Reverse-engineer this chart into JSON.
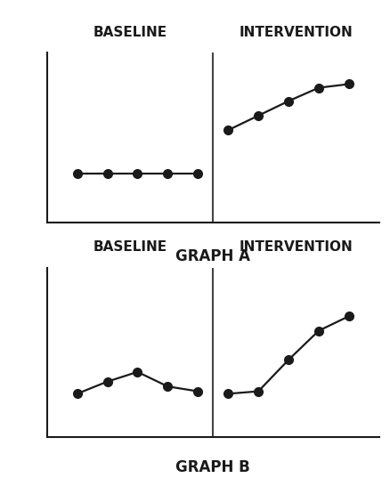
{
  "graph_A": {
    "title": "GRAPH A",
    "baseline_label": "BASELINE",
    "intervention_label": "INTERVENTION",
    "baseline_x": [
      1,
      2,
      3,
      4,
      5
    ],
    "baseline_y": [
      2.0,
      2.0,
      2.0,
      2.0,
      2.0
    ],
    "intervention_x": [
      6,
      7,
      8,
      9,
      10
    ],
    "intervention_y": [
      3.8,
      4.4,
      5.0,
      5.55,
      5.7
    ],
    "divider_x": 5.5,
    "ylim": [
      0,
      7
    ],
    "xlim": [
      0,
      11
    ]
  },
  "graph_B": {
    "title": "GRAPH B",
    "baseline_label": "BASELINE",
    "intervention_label": "INTERVENTION",
    "baseline_x": [
      1,
      2,
      3,
      4,
      5
    ],
    "baseline_y": [
      1.8,
      2.3,
      2.7,
      2.1,
      1.9
    ],
    "intervention_x": [
      6,
      7,
      8,
      9,
      10
    ],
    "intervention_y": [
      1.8,
      1.9,
      3.2,
      4.4,
      5.0
    ],
    "divider_x": 5.5,
    "ylim": [
      0,
      7
    ],
    "xlim": [
      0,
      11
    ]
  },
  "bg_color": "#ffffff",
  "line_color": "#1a1a1a",
  "marker_color": "#1a1a1a",
  "marker_size": 7,
  "line_width": 1.6,
  "axis_color": "#1a1a1a",
  "title_fontsize": 12,
  "label_fontsize": 11,
  "divider_color": "#444444",
  "divider_lw": 1.5
}
